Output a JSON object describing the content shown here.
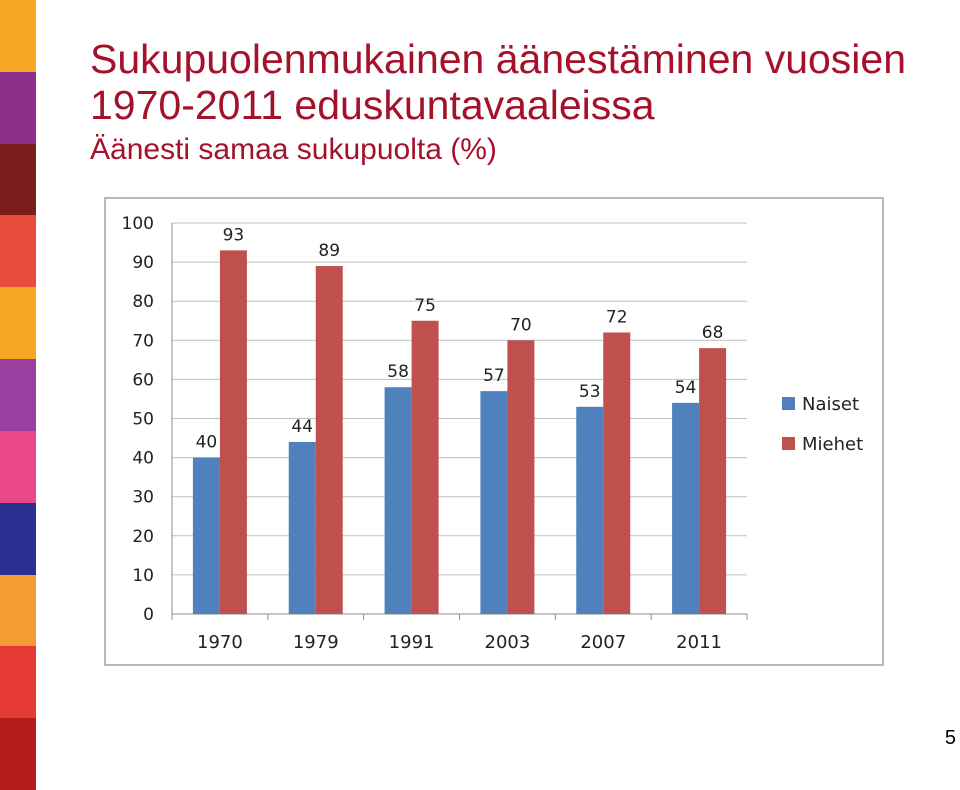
{
  "title": {
    "line1": "Sukupuolenmukainen äänestäminen vuosien",
    "line2": "1970-2011 eduskuntavaaleissa"
  },
  "subtitle": "Äänesti samaa sukupuolta (%)",
  "page_number": "5",
  "colors": {
    "title": "#a5112a",
    "naiset": "#4f81bd",
    "miehet": "#c0504d",
    "side_strip": [
      "#f5a623",
      "#8b2f8b",
      "#7a1d1d",
      "#e84c3d",
      "#f5a623",
      "#9b3fa0",
      "#e8488a",
      "#2a2f8f",
      "#f39c33",
      "#e53935",
      "#b71c1c"
    ]
  },
  "chart_data": {
    "type": "bar",
    "categories": [
      "1970",
      "1979",
      "1991",
      "2003",
      "2007",
      "2011"
    ],
    "series": [
      {
        "name": "Naiset",
        "values": [
          40,
          44,
          58,
          57,
          53,
          54
        ]
      },
      {
        "name": "Miehet",
        "values": [
          93,
          89,
          75,
          70,
          72,
          68
        ]
      }
    ],
    "ylim": [
      0,
      100
    ],
    "yticks": [
      "0",
      "10",
      "20",
      "30",
      "40",
      "50",
      "60",
      "70",
      "80",
      "90",
      "100"
    ],
    "grid": true,
    "legend": "right"
  }
}
